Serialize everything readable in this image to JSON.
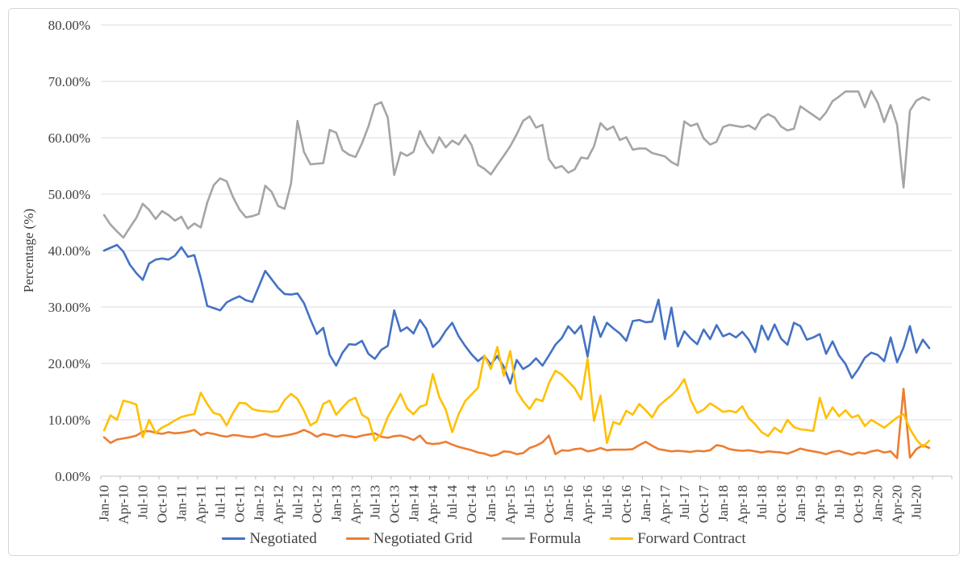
{
  "figure": {
    "background": "#ffffff",
    "border_color": "#d6d6d6"
  },
  "chart_data": {
    "type": "line",
    "title": "",
    "xlabel": "",
    "ylabel": "Percentage (%)",
    "ylim": [
      0,
      80
    ],
    "grid": true,
    "legend_position": "bottom-center",
    "y_ticks": [
      "0.00%",
      "10.00%",
      "20.00%",
      "30.00%",
      "40.00%",
      "50.00%",
      "60.00%",
      "70.00%",
      "80.00%"
    ],
    "x_tick_labels": [
      "Jan-10",
      "Apr-10",
      "Jul-10",
      "Oct-10",
      "Jan-11",
      "Apr-11",
      "Jul-11",
      "Oct-11",
      "Jan-12",
      "Apr-12",
      "Jul-12",
      "Oct-12",
      "Jan-13",
      "Apr-13",
      "Jul-13",
      "Oct-13",
      "Jan-14",
      "Apr-14",
      "Jul-14",
      "Oct-14",
      "Jan-15",
      "Apr-15",
      "Jul-15",
      "Oct-15",
      "Jan-16",
      "Apr-16",
      "Jul-16",
      "Oct-16",
      "Jan-17",
      "Apr-17",
      "Jul-17",
      "Oct-17",
      "Jan-18",
      "Apr-18",
      "Jul-18",
      "Oct-18",
      "Jan-19",
      "Apr-19",
      "Jul-19",
      "Oct-19",
      "Jan-20",
      "Apr-20",
      "Jul-20"
    ],
    "months_between_labels": 3,
    "x_axis_slots": 132,
    "n_points": 129,
    "first_point": "Jan-10",
    "last_point": "Sep-20",
    "style": {
      "text_color": "#404040",
      "gridline_color": "#dcdcdc",
      "axis_color": "#c0c0c0",
      "line_width": 2.6
    },
    "series": [
      {
        "name": "Negotiated",
        "color": "#4472C4",
        "values": [
          40.0,
          40.5,
          41.0,
          39.8,
          37.5,
          36.0,
          34.8,
          37.7,
          38.4,
          38.6,
          38.4,
          39.1,
          40.6,
          38.9,
          39.2,
          35.1,
          30.2,
          29.8,
          29.4,
          30.8,
          31.4,
          31.9,
          31.2,
          30.9,
          33.6,
          36.4,
          34.9,
          33.4,
          32.3,
          32.2,
          32.4,
          30.7,
          27.8,
          25.2,
          26.3,
          21.5,
          19.6,
          21.9,
          23.4,
          23.3,
          24.0,
          21.7,
          20.8,
          22.4,
          23.1,
          29.4,
          25.7,
          26.4,
          25.3,
          27.7,
          26.1,
          22.9,
          24.0,
          25.8,
          27.2,
          24.8,
          23.1,
          21.6,
          20.4,
          21.3,
          19.8,
          21.3,
          19.4,
          16.4,
          20.6,
          19.0,
          19.7,
          20.9,
          19.6,
          21.4,
          23.3,
          24.5,
          26.6,
          25.3,
          26.7,
          21.2,
          28.3,
          24.7,
          27.2,
          26.2,
          25.3,
          24.0,
          27.5,
          27.7,
          27.3,
          27.4,
          31.3,
          24.3,
          29.9,
          23.0,
          25.7,
          24.4,
          23.4,
          26.0,
          24.3,
          26.8,
          24.8,
          25.3,
          24.6,
          25.6,
          24.2,
          22.0,
          26.7,
          24.2,
          26.9,
          24.4,
          23.3,
          27.2,
          26.6,
          24.2,
          24.6,
          25.2,
          21.7,
          23.9,
          21.4,
          19.9,
          17.4,
          19.0,
          21.0,
          21.9,
          21.5,
          20.4,
          24.6,
          20.2,
          22.8,
          26.6,
          21.9,
          24.2,
          22.7
        ]
      },
      {
        "name": "Negotiated Grid",
        "color": "#ED7D31",
        "values": [
          6.9,
          5.9,
          6.5,
          6.7,
          6.9,
          7.2,
          7.9,
          8.0,
          7.7,
          7.5,
          7.8,
          7.6,
          7.7,
          7.9,
          8.2,
          7.3,
          7.7,
          7.5,
          7.2,
          7.0,
          7.3,
          7.2,
          7.0,
          6.9,
          7.2,
          7.5,
          7.1,
          7.0,
          7.2,
          7.4,
          7.7,
          8.2,
          7.7,
          7.0,
          7.5,
          7.3,
          7.0,
          7.3,
          7.1,
          6.9,
          7.2,
          7.4,
          7.6,
          7.0,
          6.8,
          7.1,
          7.2,
          6.9,
          6.4,
          7.2,
          5.9,
          5.7,
          5.8,
          6.1,
          5.6,
          5.2,
          4.9,
          4.6,
          4.2,
          4.0,
          3.6,
          3.8,
          4.4,
          4.3,
          3.9,
          4.1,
          5.0,
          5.4,
          6.0,
          7.2,
          3.9,
          4.6,
          4.5,
          4.8,
          4.9,
          4.4,
          4.6,
          5.0,
          4.6,
          4.7,
          4.7,
          4.7,
          4.8,
          5.5,
          6.1,
          5.4,
          4.8,
          4.6,
          4.4,
          4.5,
          4.4,
          4.3,
          4.5,
          4.4,
          4.6,
          5.5,
          5.3,
          4.8,
          4.6,
          4.5,
          4.6,
          4.4,
          4.2,
          4.4,
          4.3,
          4.2,
          4.0,
          4.4,
          4.9,
          4.6,
          4.4,
          4.2,
          3.9,
          4.3,
          4.5,
          4.1,
          3.8,
          4.2,
          4.0,
          4.4,
          4.6,
          4.2,
          4.4,
          3.2,
          15.5,
          3.3,
          4.8,
          5.5,
          5.0
        ]
      },
      {
        "name": "Formula",
        "color": "#A5A5A5",
        "values": [
          46.3,
          44.6,
          43.4,
          42.3,
          44.1,
          45.8,
          48.3,
          47.2,
          45.6,
          47.0,
          46.3,
          45.3,
          46.0,
          43.9,
          44.8,
          44.1,
          48.5,
          51.6,
          52.8,
          52.3,
          49.5,
          47.3,
          45.9,
          46.1,
          46.5,
          51.5,
          50.4,
          47.9,
          47.4,
          51.9,
          63.0,
          57.5,
          55.3,
          55.4,
          55.5,
          61.4,
          60.9,
          57.8,
          57.0,
          56.6,
          59.0,
          62.0,
          65.8,
          66.3,
          63.6,
          53.4,
          57.4,
          56.8,
          57.5,
          61.2,
          58.9,
          57.3,
          60.1,
          58.3,
          59.5,
          58.8,
          60.5,
          58.7,
          55.2,
          54.5,
          53.5,
          55.2,
          56.8,
          58.5,
          60.6,
          63.0,
          63.8,
          61.8,
          62.3,
          56.2,
          54.6,
          55.0,
          53.8,
          54.4,
          56.5,
          56.3,
          58.5,
          62.6,
          61.4,
          62.0,
          59.6,
          60.1,
          57.9,
          58.1,
          58.1,
          57.3,
          57.0,
          56.7,
          55.7,
          55.1,
          62.9,
          62.1,
          62.5,
          59.9,
          58.8,
          59.3,
          61.9,
          62.3,
          62.1,
          61.9,
          62.2,
          61.5,
          63.5,
          64.2,
          63.6,
          62.0,
          61.3,
          61.6,
          65.6,
          64.8,
          64.0,
          63.2,
          64.5,
          66.5,
          67.3,
          68.2,
          68.2,
          68.2,
          65.4,
          68.3,
          66.2,
          62.8,
          65.8,
          62.3,
          51.2,
          64.8,
          66.6,
          67.2,
          66.7
        ]
      },
      {
        "name": "Forward Contract",
        "color": "#FFC000",
        "values": [
          8.1,
          10.8,
          10.0,
          13.4,
          13.1,
          12.7,
          6.9,
          10.0,
          7.7,
          8.6,
          9.2,
          9.9,
          10.5,
          10.8,
          11.0,
          14.8,
          12.8,
          11.2,
          10.9,
          9.0,
          11.2,
          13.0,
          12.9,
          11.9,
          11.6,
          11.5,
          11.4,
          11.6,
          13.5,
          14.6,
          13.7,
          11.6,
          9.0,
          9.7,
          12.8,
          13.4,
          10.9,
          12.2,
          13.4,
          13.9,
          10.9,
          10.2,
          6.3,
          7.5,
          10.5,
          12.5,
          14.6,
          12.0,
          11.0,
          12.3,
          12.7,
          18.1,
          14.0,
          11.8,
          7.8,
          11.0,
          13.3,
          14.5,
          15.7,
          21.4,
          19.0,
          22.9,
          17.8,
          22.2,
          15.1,
          13.3,
          11.9,
          13.7,
          13.3,
          16.5,
          18.7,
          18.0,
          16.8,
          15.6,
          13.6,
          20.8,
          9.8,
          14.3,
          5.9,
          9.6,
          9.2,
          11.6,
          10.9,
          12.8,
          11.7,
          10.4,
          12.4,
          13.4,
          14.3,
          15.5,
          17.2,
          13.5,
          11.2,
          11.8,
          12.9,
          12.2,
          11.4,
          11.6,
          11.3,
          12.4,
          10.3,
          9.2,
          7.8,
          7.1,
          8.6,
          7.8,
          10.0,
          8.7,
          8.3,
          8.2,
          8.0,
          13.9,
          10.3,
          12.2,
          10.6,
          11.7,
          10.4,
          10.8,
          8.9,
          10.0,
          9.3,
          8.6,
          9.5,
          10.4,
          11.0,
          8.4,
          6.5,
          5.2,
          6.3
        ]
      }
    ]
  }
}
